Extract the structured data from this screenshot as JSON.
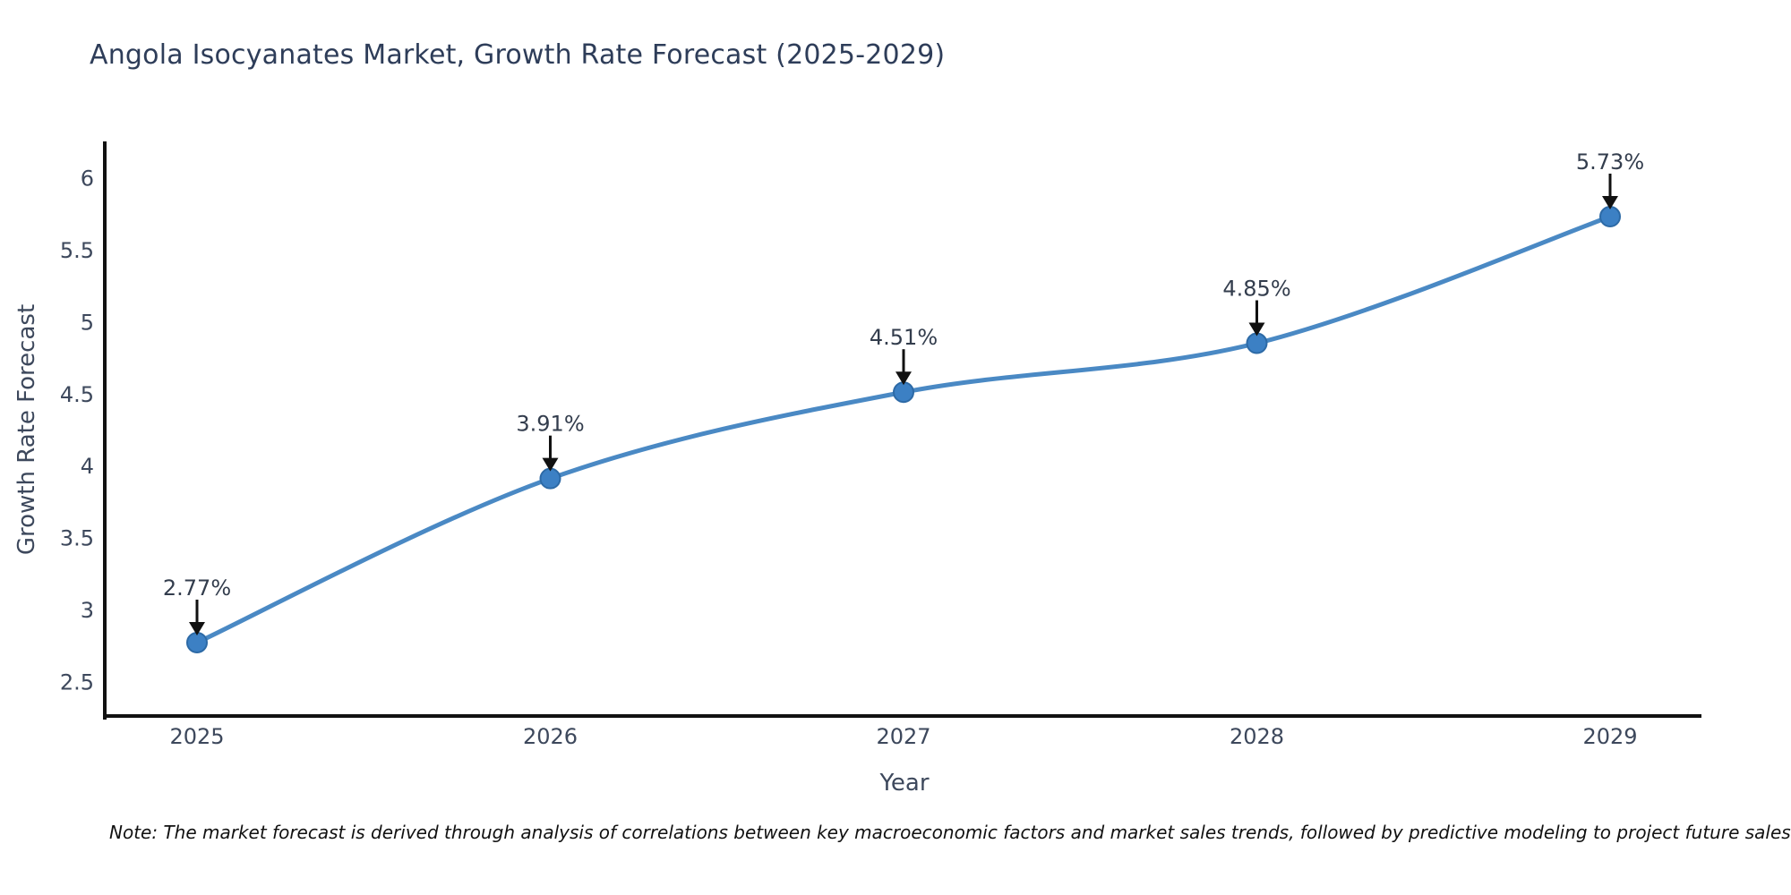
{
  "chart": {
    "title": "Angola Isocyanates Market, Growth Rate Forecast (2025-2029)",
    "xlabel": "Year",
    "ylabel": "Growth Rate Forecast",
    "note": "Note: The market forecast is derived through analysis of correlations between key macroeconomic factors and market sales trends, followed by predictive modeling to project future sales"
  },
  "chart_data": {
    "type": "line",
    "title": "Angola Isocyanates Market, Growth Rate Forecast (2025-2029)",
    "xlabel": "Year",
    "ylabel": "Growth Rate Forecast",
    "categories": [
      "2025",
      "2026",
      "2027",
      "2028",
      "2029"
    ],
    "series": [
      {
        "name": "Growth Rate Forecast",
        "values": [
          2.77,
          3.91,
          4.51,
          4.85,
          5.73
        ],
        "point_labels": [
          "2.77%",
          "3.91%",
          "4.51%",
          "4.85%",
          "5.73%"
        ]
      }
    ],
    "yticks": [
      2.5,
      3,
      3.5,
      4,
      4.5,
      5,
      5.5,
      6
    ],
    "ylim": [
      2.26,
      6.24
    ],
    "grid": false,
    "legend_position": "none",
    "smooth_curve": true,
    "colors": {
      "line": "#4a89c4",
      "marker_fill": "#3c80c4",
      "marker_edge": "#2d6aa6",
      "annotation_arrow": "#111111",
      "axis_spine": "#111111",
      "title_text": "#2e3d59",
      "axis_text": "#3d485c"
    }
  }
}
